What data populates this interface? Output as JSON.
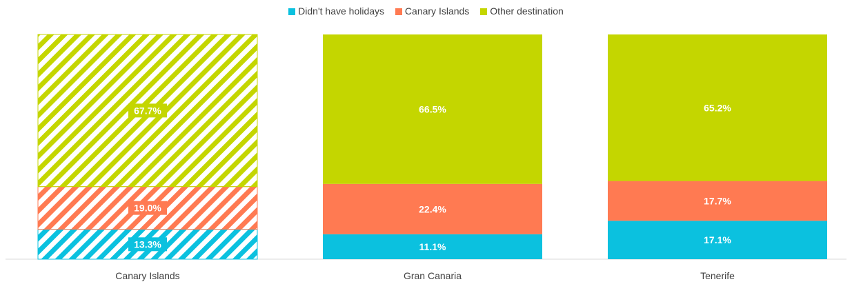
{
  "chart_data": {
    "type": "bar",
    "stacked": true,
    "percent_of_total": true,
    "categories": [
      "Canary Islands",
      "Gran Canaria",
      "Tenerife"
    ],
    "series": [
      {
        "name": "Didn't have holidays",
        "color": "#0BC1DF",
        "values": [
          13.3,
          11.1,
          17.1
        ]
      },
      {
        "name": "Canary Islands",
        "color": "#FF7A52",
        "values": [
          19.0,
          22.4,
          17.7
        ]
      },
      {
        "name": "Other destination",
        "color": "#C4D600",
        "values": [
          67.7,
          66.5,
          65.2
        ]
      }
    ],
    "data_labels": [
      [
        "13.3%",
        "11.1%",
        "17.1%"
      ],
      [
        "19.0%",
        "22.4%",
        "17.7%"
      ],
      [
        "67.7%",
        "66.5%",
        "65.2%"
      ]
    ],
    "hatched_categories": [
      "Canary Islands"
    ],
    "legend_position": "top",
    "grid": false,
    "ylim": [
      0,
      100
    ]
  }
}
